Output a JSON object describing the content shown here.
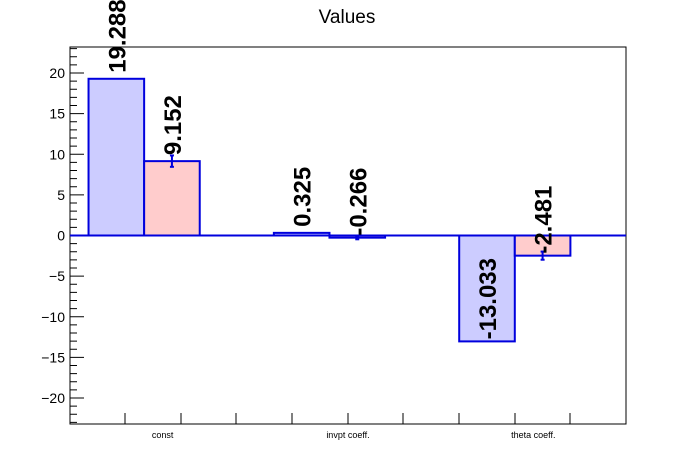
{
  "chart_data": {
    "type": "bar",
    "title": "Values",
    "xlabel": "",
    "ylabel": "",
    "categories": [
      "const",
      "invpt coeff.",
      "theta coeff."
    ],
    "series": [
      {
        "values": [
          19.288,
          0.325,
          -13.033
        ],
        "errors": [
          0.0,
          0.0,
          0.0
        ],
        "labels": [
          "19.288",
          "0.325",
          "-13.033"
        ],
        "fill": "#ccccff",
        "stroke": "#0000dd"
      },
      {
        "values": [
          9.152,
          -0.266,
          -2.481
        ],
        "errors": [
          0.7,
          0.2,
          0.5
        ],
        "labels": [
          "9.152",
          "-0.266",
          "-2.481"
        ],
        "fill": "#ffcccc",
        "stroke": "#0000dd"
      }
    ],
    "ylim": [
      -23.2,
      23.2
    ],
    "yticks": [
      -20,
      -15,
      -10,
      -5,
      0,
      5,
      10,
      15,
      20
    ],
    "ytick_labels": [
      "−20",
      "−15",
      "−10",
      "−5",
      "0",
      "5",
      "10",
      "15",
      "20"
    ],
    "grid": false,
    "legend": "none"
  }
}
